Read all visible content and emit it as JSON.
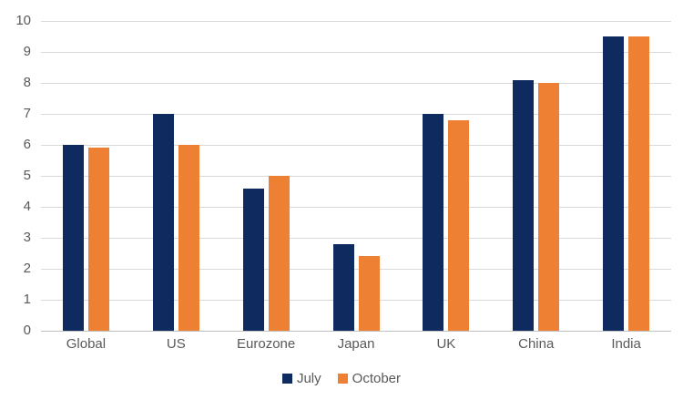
{
  "chart_data": {
    "type": "bar",
    "title": "",
    "xlabel": "",
    "ylabel": "",
    "categories": [
      "Global",
      "US",
      "Eurozone",
      "Japan",
      "UK",
      "China",
      "India"
    ],
    "series": [
      {
        "name": "July",
        "color": "#0e2a5e",
        "values": [
          6.0,
          7.0,
          4.6,
          2.8,
          7.0,
          8.1,
          9.5
        ]
      },
      {
        "name": "October",
        "color": "#ed8032",
        "values": [
          5.9,
          6.0,
          5.0,
          2.4,
          6.8,
          8.0,
          9.5
        ]
      }
    ],
    "ylim": [
      0,
      10
    ],
    "ytick_step": 1,
    "ytick_labels": [
      "0",
      "1",
      "2",
      "3",
      "4",
      "5",
      "6",
      "7",
      "8",
      "9",
      "10"
    ],
    "grid": true,
    "legend_position": "bottom-center"
  },
  "colors": {
    "background": "#ffffff",
    "gridline": "#d9d9d9",
    "axis_line": "#c0c0c0",
    "tick_label": "#595959",
    "legend_text": "#595959"
  }
}
